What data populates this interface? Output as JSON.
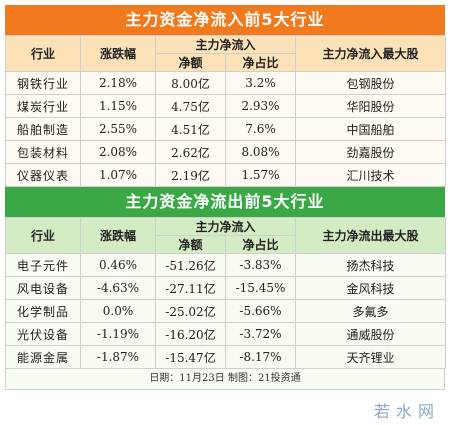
{
  "inflow": {
    "title": "主力资金净流入前5大行业",
    "headers": {
      "industry": "行业",
      "change": "涨跌幅",
      "group": "主力净流入",
      "net": "净额",
      "ratio": "净占比",
      "top_stock": "主力净流入最大股"
    },
    "rows": [
      {
        "industry": "钢铁行业",
        "change": "2.18%",
        "net": "8.00亿",
        "ratio": "3.2%",
        "stock": "包钢股份"
      },
      {
        "industry": "煤炭行业",
        "change": "1.15%",
        "net": "4.75亿",
        "ratio": "2.93%",
        "stock": "华阳股份"
      },
      {
        "industry": "船舶制造",
        "change": "2.55%",
        "net": "4.51亿",
        "ratio": "7.6%",
        "stock": "中国船舶"
      },
      {
        "industry": "包装材料",
        "change": "2.08%",
        "net": "2.62亿",
        "ratio": "8.08%",
        "stock": "劲嘉股份"
      },
      {
        "industry": "仪器仪表",
        "change": "1.07%",
        "net": "2.19亿",
        "ratio": "1.57%",
        "stock": "汇川技术"
      }
    ]
  },
  "outflow": {
    "title": "主力资金净流出前5大行业",
    "headers": {
      "industry": "行业",
      "change": "涨跌幅",
      "group": "主力净流入",
      "net": "净额",
      "ratio": "净占比",
      "top_stock": "主力净流出最大股"
    },
    "rows": [
      {
        "industry": "电子元件",
        "change": "0.46%",
        "net": "-51.26亿",
        "ratio": "-3.83%",
        "stock": "扬杰科技"
      },
      {
        "industry": "风电设备",
        "change": "-4.63%",
        "net": "-27.11亿",
        "ratio": "-15.45%",
        "stock": "金风科技"
      },
      {
        "industry": "化学制品",
        "change": "0.0%",
        "net": "-25.02亿",
        "ratio": "-5.66%",
        "stock": "多氟多"
      },
      {
        "industry": "光伏设备",
        "change": "-1.19%",
        "net": "-16.20亿",
        "ratio": "-3.72%",
        "stock": "通威股份"
      },
      {
        "industry": "能源金属",
        "change": "-1.87%",
        "net": "-15.47亿",
        "ratio": "-8.17%",
        "stock": "天齐锂业"
      }
    ]
  },
  "footer": "日期：11月23日  制图：21投资通",
  "logo_text": "若水网"
}
